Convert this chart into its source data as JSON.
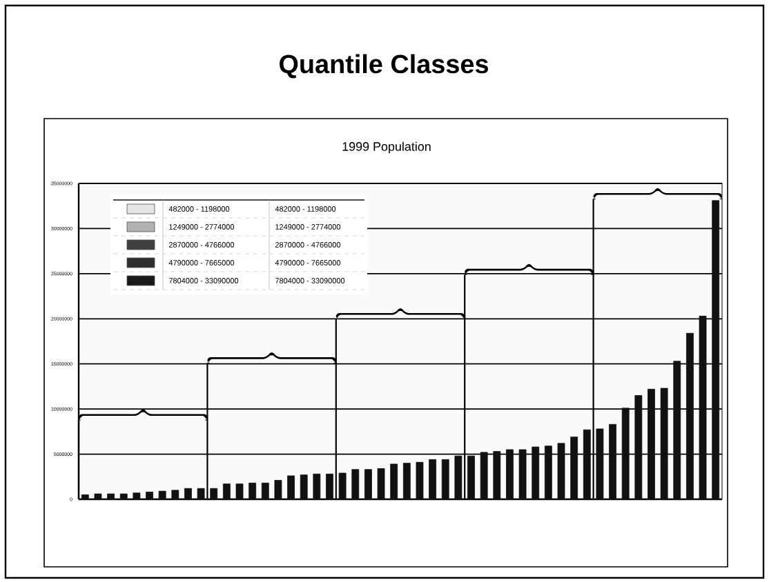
{
  "chart_data": {
    "type": "bar",
    "title": "Quantile Classes",
    "subtitle": "1999 Population",
    "categories": [
      null,
      null,
      null,
      null,
      null,
      null,
      null,
      null,
      null,
      null,
      null,
      null,
      null,
      null,
      null,
      null,
      null,
      null,
      null,
      null,
      null,
      null,
      null,
      null,
      null,
      null,
      null,
      null,
      null,
      null,
      null,
      null,
      null,
      null,
      null,
      null,
      null,
      null,
      null,
      null,
      null,
      null,
      null,
      null,
      null,
      null,
      null,
      null,
      null,
      null
    ],
    "values": [
      500000,
      600000,
      600000,
      600000,
      700000,
      800000,
      900000,
      1000000,
      1200000,
      1200000,
      1200000,
      1700000,
      1700000,
      1800000,
      1800000,
      2100000,
      2600000,
      2700000,
      2800000,
      2800000,
      2900000,
      3300000,
      3300000,
      3400000,
      3900000,
      4000000,
      4100000,
      4400000,
      4400000,
      4800000,
      4800000,
      5200000,
      5300000,
      5500000,
      5500000,
      5800000,
      5900000,
      6200000,
      6900000,
      7700000,
      7800000,
      8300000,
      10100000,
      11500000,
      12200000,
      12300000,
      15300000,
      18400000,
      20300000,
      33100000
    ],
    "color": "#111111",
    "ylim": [
      0,
      35000000
    ],
    "yticks": [
      0,
      5000000,
      10000000,
      15000000,
      20000000,
      25000000,
      30000000,
      35000000
    ],
    "grid": "y",
    "tick_labels": "y",
    "annotations": [
      "482000 - 1198000",
      "482000 - 1198000",
      "1249000 - 2774000",
      "1249000 - 2774000",
      "2870000 - 4766000",
      "2870000 - 4766000",
      "4790000 - 7665000",
      "4790000 - 7665000",
      "7804000 - 33090000",
      "7804000 - 33090000"
    ]
  }
}
